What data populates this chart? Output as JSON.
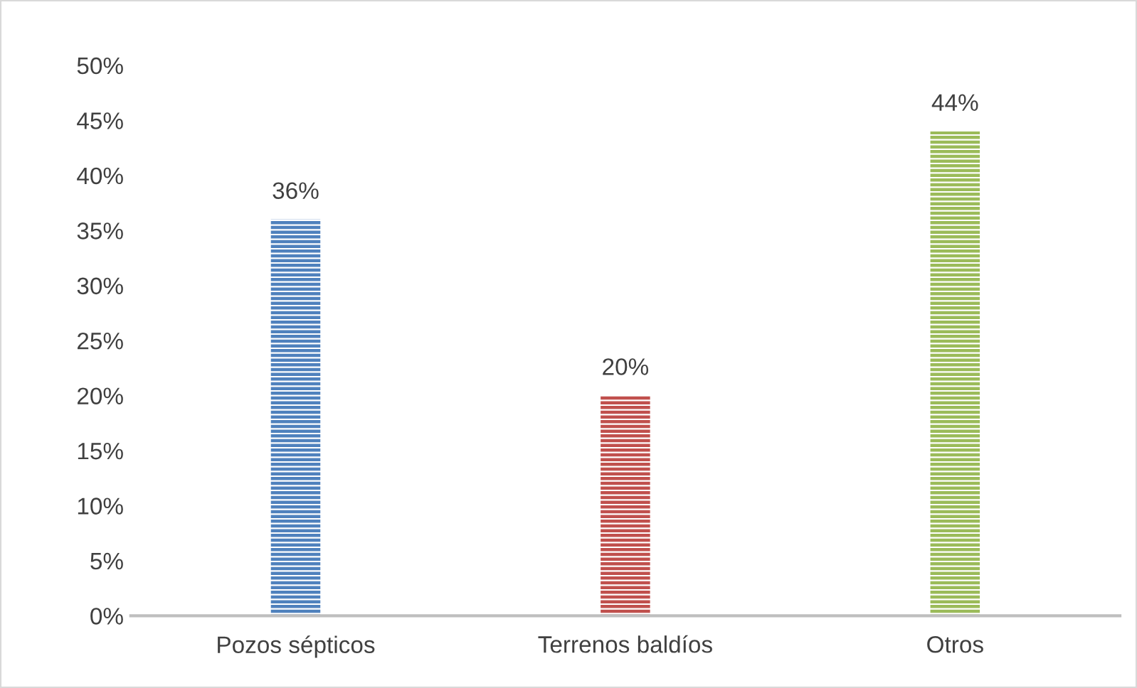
{
  "chart_data": {
    "type": "bar",
    "categories": [
      "Pozos sépticos",
      "Terrenos baldíos",
      "Otros"
    ],
    "values": [
      36,
      20,
      44
    ],
    "colors": [
      "#4f81bd",
      "#c0504d",
      "#9bbb59"
    ],
    "value_labels": [
      "36%",
      "20%",
      "44%"
    ],
    "ylim": [
      0,
      50
    ],
    "yticks": [
      {
        "value": 0,
        "label": "0%"
      },
      {
        "value": 5,
        "label": "5%"
      },
      {
        "value": 10,
        "label": "10%"
      },
      {
        "value": 15,
        "label": "15%"
      },
      {
        "value": 20,
        "label": "20%"
      },
      {
        "value": 25,
        "label": "25%"
      },
      {
        "value": 30,
        "label": "30%"
      },
      {
        "value": 35,
        "label": "35%"
      },
      {
        "value": 40,
        "label": "40%"
      },
      {
        "value": 45,
        "label": "45%"
      },
      {
        "value": 50,
        "label": "50%"
      }
    ],
    "grid": false,
    "legend": false
  }
}
